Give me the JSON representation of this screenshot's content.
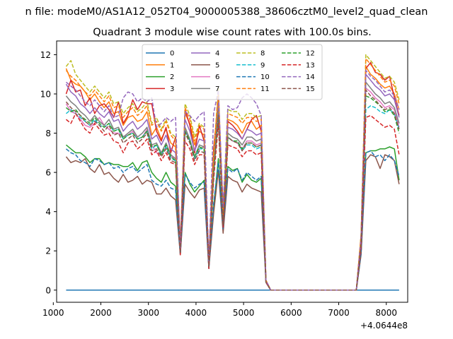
{
  "figure": {
    "suptitle": "n file: modeM0/AS1A12_052T04_9000005388_38606cztM0_level2_quad_clean",
    "title": "Quadrant 3 module wise count rates with 100.0s bins."
  },
  "chart_data": {
    "type": "line",
    "title": "Quadrant 3 module wise count rates with 100.0s bins.",
    "xlabel": "",
    "ylabel": "",
    "x_offset_label": "+4.0644e8",
    "xlim": [
      1070,
      8450
    ],
    "ylim": [
      -0.62,
      12.7
    ],
    "xticks": [
      1000,
      2000,
      3000,
      4000,
      5000,
      6000,
      7000,
      8000
    ],
    "yticks": [
      0,
      2,
      4,
      6,
      8,
      10,
      12
    ],
    "grid": false,
    "legend_placement": "upper center",
    "legend_ncol": 4,
    "x": [
      1270,
      1370,
      1470,
      1570,
      1670,
      1770,
      1870,
      1970,
      2070,
      2170,
      2270,
      2370,
      2470,
      2570,
      2670,
      2770,
      2870,
      2970,
      3070,
      3170,
      3270,
      3370,
      3470,
      3570,
      3670,
      3770,
      3870,
      3970,
      4070,
      4170,
      4270,
      4370,
      4470,
      4570,
      4670,
      4770,
      4870,
      4970,
      5070,
      5170,
      5270,
      5370,
      5470,
      5570,
      5670,
      5770,
      5870,
      5970,
      6070,
      6170,
      6270,
      6370,
      6470,
      6570,
      6670,
      6770,
      6870,
      6970,
      7070,
      7170,
      7270,
      7370,
      7470,
      7570,
      7670,
      7770,
      7870,
      7970,
      8070,
      8170,
      8270
    ],
    "series": [
      {
        "name": "0",
        "color": "#1f77b4",
        "style": "solid",
        "values": [
          0,
          0,
          0,
          0,
          0,
          0,
          0,
          0,
          0,
          0,
          0,
          0,
          0,
          0,
          0,
          0,
          0,
          0,
          0,
          0,
          0,
          0,
          0,
          0,
          0,
          0,
          0,
          0,
          0,
          0,
          0,
          0,
          0,
          0,
          0,
          0,
          0,
          0,
          0,
          0,
          0,
          0,
          0,
          0,
          0,
          0,
          0,
          0,
          0,
          0,
          0,
          0,
          0,
          0,
          0,
          0,
          0,
          0,
          0,
          0,
          0,
          0,
          0,
          0,
          0,
          0,
          0,
          0,
          0,
          0,
          0
        ]
      },
      {
        "name": "1",
        "color": "#ff7f0e",
        "style": "solid",
        "values": [
          11.3,
          10.7,
          10.5,
          10.4,
          10.1,
          9.7,
          10.0,
          9.6,
          9.3,
          9.6,
          9.0,
          9.1,
          8.4,
          8.8,
          8.9,
          8.6,
          8.7,
          9.1,
          7.9,
          8.3,
          7.7,
          8.2,
          7.5,
          7.3,
          2.0,
          9.0,
          8.5,
          7.4,
          8.1,
          7.9,
          1.3,
          6.5,
          10.0,
          3.7,
          8.7,
          8.6,
          8.4,
          8.0,
          8.5,
          8.6,
          8.2,
          8.4,
          0.5,
          0,
          0,
          0,
          0,
          0,
          0,
          0,
          0,
          0,
          0,
          0,
          0,
          0,
          0,
          0,
          0,
          0,
          0,
          0,
          2.6,
          11.4,
          11.0,
          10.8,
          10.5,
          10.3,
          10.4,
          10.0,
          9.2
        ]
      },
      {
        "name": "2",
        "color": "#2ca02c",
        "style": "solid",
        "values": [
          7.4,
          7.2,
          7.0,
          7.0,
          6.8,
          6.5,
          6.7,
          6.7,
          6.4,
          6.5,
          6.4,
          6.4,
          6.3,
          6.3,
          6.5,
          6.1,
          6.5,
          6.6,
          6.0,
          5.7,
          5.5,
          6.0,
          5.5,
          5.3,
          1.9,
          6.0,
          5.4,
          5.0,
          5.3,
          5.6,
          1.2,
          4.2,
          6.7,
          3.2,
          6.3,
          6.1,
          6.2,
          5.5,
          5.9,
          5.6,
          5.5,
          5.7,
          0.4,
          0,
          0,
          0,
          0,
          0,
          0,
          0,
          0,
          0,
          0,
          0,
          0,
          0,
          0,
          0,
          0,
          0,
          0,
          0,
          1.9,
          7.0,
          7.1,
          7.1,
          7.2,
          7.2,
          7.3,
          7.2,
          5.6
        ]
      },
      {
        "name": "3",
        "color": "#d62728",
        "style": "solid",
        "values": [
          10.0,
          10.7,
          10.1,
          10.2,
          9.4,
          9.8,
          9.0,
          9.4,
          9.5,
          9.2,
          8.8,
          9.6,
          8.5,
          8.9,
          9.7,
          9.2,
          9.6,
          9.5,
          9.5,
          8.1,
          7.6,
          8.3,
          7.0,
          7.8,
          2.3,
          9.2,
          8.4,
          7.0,
          8.4,
          7.6,
          1.5,
          7.2,
          9.7,
          4.2,
          8.6,
          8.4,
          8.1,
          7.7,
          8.2,
          8.7,
          8.9,
          8.1,
          0.5,
          0,
          0,
          0,
          0,
          0,
          0,
          0,
          0,
          0,
          0,
          0,
          0,
          0,
          0,
          0,
          0,
          0,
          0,
          0,
          2.8,
          11.3,
          11.6,
          11.1,
          11.0,
          10.7,
          10.9,
          9.8,
          8.9
        ]
      },
      {
        "name": "4",
        "color": "#9467bd",
        "style": "solid",
        "values": [
          10.5,
          10.1,
          9.9,
          9.5,
          9.3,
          9.0,
          9.3,
          9.0,
          8.8,
          9.1,
          8.6,
          8.7,
          8.1,
          8.4,
          8.6,
          8.2,
          8.4,
          8.7,
          7.7,
          7.9,
          7.4,
          7.9,
          7.2,
          7.0,
          1.9,
          8.7,
          8.1,
          7.1,
          7.7,
          7.6,
          1.2,
          6.3,
          9.6,
          3.5,
          8.3,
          8.2,
          8.0,
          7.7,
          8.2,
          8.1,
          7.9,
          8.0,
          0.5,
          0,
          0,
          0,
          0,
          0,
          0,
          0,
          0,
          0,
          0,
          0,
          0,
          0,
          0,
          0,
          0,
          0,
          0,
          0,
          2.5,
          11.0,
          10.7,
          10.4,
          10.2,
          9.9,
          10.0,
          9.7,
          8.8
        ]
      },
      {
        "name": "5",
        "color": "#8c564b",
        "style": "solid",
        "values": [
          6.8,
          6.5,
          6.6,
          6.5,
          6.7,
          6.2,
          6.0,
          6.4,
          5.9,
          6.0,
          5.7,
          5.5,
          5.9,
          5.5,
          5.6,
          5.8,
          5.4,
          5.6,
          5.5,
          4.9,
          4.9,
          5.2,
          4.8,
          4.6,
          1.8,
          5.4,
          5.0,
          4.7,
          5.1,
          5.2,
          1.1,
          3.9,
          6.1,
          2.9,
          5.8,
          5.6,
          5.5,
          5.0,
          5.4,
          5.2,
          5.1,
          5.0,
          0.4,
          0,
          0,
          0,
          0,
          0,
          0,
          0,
          0,
          0,
          0,
          0,
          0,
          0,
          0,
          0,
          0,
          0,
          0,
          0,
          1.8,
          6.6,
          6.9,
          6.8,
          6.2,
          6.9,
          6.8,
          6.6,
          5.4
        ]
      },
      {
        "name": "6",
        "color": "#e377c2",
        "style": "solid",
        "values": [
          9.5,
          9.1,
          9.0,
          8.7,
          8.4,
          8.3,
          8.5,
          8.8,
          8.4,
          8.2,
          8.0,
          8.0,
          7.8,
          7.9,
          8.1,
          7.7,
          7.8,
          8.2,
          7.4,
          7.0,
          6.9,
          7.3,
          6.8,
          6.7,
          1.9,
          8.2,
          7.6,
          6.8,
          7.2,
          7.3,
          1.2,
          6.0,
          8.9,
          3.4,
          7.8,
          7.6,
          7.5,
          7.2,
          7.6,
          7.6,
          7.4,
          7.5,
          0.5,
          0,
          0,
          0,
          0,
          0,
          0,
          0,
          0,
          0,
          0,
          0,
          0,
          0,
          0,
          0,
          0,
          0,
          0,
          0,
          2.4,
          10.3,
          10.1,
          9.8,
          9.6,
          9.3,
          9.4,
          9.2,
          8.3
        ]
      },
      {
        "name": "7",
        "color": "#7f7f7f",
        "style": "solid",
        "values": [
          9.9,
          9.6,
          9.4,
          9.1,
          8.9,
          8.6,
          8.9,
          8.6,
          8.4,
          8.7,
          8.2,
          8.3,
          7.8,
          8.0,
          8.2,
          7.8,
          8.0,
          8.3,
          7.4,
          7.5,
          7.0,
          7.5,
          6.9,
          6.7,
          1.9,
          8.3,
          7.7,
          6.8,
          7.4,
          7.3,
          1.2,
          6.1,
          9.2,
          3.4,
          8.0,
          7.8,
          7.7,
          7.4,
          7.8,
          7.8,
          7.6,
          7.7,
          0.5,
          0,
          0,
          0,
          0,
          0,
          0,
          0,
          0,
          0,
          0,
          0,
          0,
          0,
          0,
          0,
          0,
          0,
          0,
          0,
          2.4,
          10.6,
          10.3,
          10.0,
          9.8,
          9.5,
          9.6,
          9.3,
          8.5
        ]
      },
      {
        "name": "8",
        "color": "#bcbd22",
        "style": "dashed",
        "values": [
          11.4,
          11.7,
          11.0,
          10.7,
          10.4,
          10.1,
          10.4,
          10.1,
          9.8,
          10.1,
          9.5,
          9.6,
          9.0,
          9.3,
          9.5,
          9.1,
          9.3,
          9.6,
          8.5,
          8.8,
          8.2,
          8.7,
          8.0,
          7.8,
          2.1,
          9.5,
          8.9,
          7.8,
          8.5,
          8.3,
          1.3,
          6.9,
          10.3,
          3.8,
          9.2,
          9.1,
          9.1,
          8.7,
          9.0,
          9.0,
          8.8,
          8.9,
          0.5,
          0,
          0,
          0,
          0,
          0,
          0,
          0,
          0,
          0,
          0,
          0,
          0,
          0,
          0,
          0,
          0,
          0,
          0,
          0,
          2.8,
          12.0,
          11.7,
          11.4,
          11.1,
          10.8,
          10.9,
          10.6,
          9.7
        ]
      },
      {
        "name": "9",
        "color": "#17becf",
        "style": "dashed",
        "values": [
          9.0,
          9.2,
          9.0,
          8.8,
          8.6,
          8.4,
          8.7,
          8.4,
          8.3,
          8.5,
          8.1,
          8.2,
          7.7,
          7.9,
          8.0,
          7.7,
          7.8,
          8.1,
          7.2,
          7.4,
          6.9,
          7.3,
          6.7,
          6.6,
          1.9,
          8.1,
          7.6,
          6.7,
          7.2,
          7.2,
          1.2,
          5.9,
          8.9,
          3.3,
          7.8,
          7.6,
          7.6,
          7.1,
          7.4,
          7.4,
          7.2,
          7.3,
          0.4,
          0,
          0,
          0,
          0,
          0,
          0,
          0,
          0,
          0,
          0,
          0,
          0,
          0,
          0,
          0,
          0,
          0,
          0,
          0,
          2.3,
          9.2,
          9.4,
          9.3,
          9.1,
          9.0,
          9.2,
          9.0,
          8.2
        ]
      },
      {
        "name": "10",
        "color": "#1f77b4",
        "style": "dashed",
        "values": [
          7.2,
          7.0,
          6.9,
          6.6,
          6.5,
          6.3,
          6.7,
          6.6,
          6.4,
          6.5,
          6.2,
          6.3,
          6.0,
          6.2,
          6.3,
          6.0,
          6.2,
          6.4,
          5.6,
          5.4,
          5.3,
          5.6,
          5.2,
          5.1,
          1.8,
          5.9,
          5.5,
          5.2,
          5.4,
          5.5,
          1.1,
          4.4,
          6.5,
          3.1,
          6.2,
          6.0,
          6.2,
          5.6,
          6.0,
          5.8,
          5.6,
          5.8,
          0.4,
          0,
          0,
          0,
          0,
          0,
          0,
          0,
          0,
          0,
          0,
          0,
          0,
          0,
          0,
          0,
          0,
          0,
          0,
          0,
          1.9,
          7.0,
          7.1,
          6.8,
          6.9,
          6.6,
          6.9,
          6.6,
          5.8
        ]
      },
      {
        "name": "11",
        "color": "#ff7f0e",
        "style": "dashed",
        "values": [
          11.2,
          10.9,
          10.7,
          10.4,
          10.1,
          9.9,
          10.2,
          9.9,
          9.6,
          9.9,
          9.3,
          9.4,
          8.8,
          9.1,
          9.3,
          8.9,
          9.1,
          9.4,
          8.4,
          8.6,
          8.1,
          8.6,
          7.9,
          7.6,
          2.1,
          9.3,
          8.7,
          7.6,
          8.4,
          8.2,
          1.3,
          6.8,
          10.1,
          3.7,
          9.0,
          8.9,
          8.8,
          8.5,
          8.8,
          8.8,
          8.6,
          8.7,
          0.5,
          0,
          0,
          0,
          0,
          0,
          0,
          0,
          0,
          0,
          0,
          0,
          0,
          0,
          0,
          0,
          0,
          0,
          0,
          0,
          2.7,
          11.8,
          11.5,
          11.2,
          10.9,
          10.6,
          10.7,
          10.4,
          9.5
        ]
      },
      {
        "name": "12",
        "color": "#2ca02c",
        "style": "dashed",
        "values": [
          9.3,
          9.1,
          9.2,
          8.9,
          8.7,
          8.5,
          8.8,
          8.5,
          8.3,
          8.5,
          8.1,
          8.2,
          7.7,
          7.9,
          8.0,
          7.7,
          7.8,
          8.1,
          7.3,
          7.4,
          6.9,
          7.4,
          6.8,
          6.6,
          1.9,
          8.1,
          7.6,
          6.8,
          7.3,
          7.2,
          1.2,
          6.0,
          8.9,
          3.3,
          7.8,
          7.6,
          7.6,
          7.2,
          7.5,
          7.5,
          7.3,
          7.4,
          0.4,
          0,
          0,
          0,
          0,
          0,
          0,
          0,
          0,
          0,
          0,
          0,
          0,
          0,
          0,
          0,
          0,
          0,
          0,
          0,
          2.3,
          9.9,
          9.8,
          9.6,
          9.4,
          9.1,
          9.2,
          8.9,
          8.0
        ]
      },
      {
        "name": "13",
        "color": "#d62728",
        "style": "dashed",
        "values": [
          8.7,
          8.5,
          9.0,
          8.6,
          8.2,
          8.0,
          8.5,
          8.2,
          7.9,
          8.0,
          7.6,
          7.5,
          7.0,
          7.5,
          7.6,
          7.2,
          7.4,
          7.7,
          6.9,
          7.1,
          6.6,
          7.0,
          6.5,
          6.4,
          1.8,
          7.6,
          7.2,
          6.4,
          6.9,
          6.9,
          1.1,
          5.6,
          8.5,
          3.2,
          7.4,
          7.3,
          7.2,
          6.8,
          7.1,
          7.1,
          6.9,
          7.0,
          0.4,
          0,
          0,
          0,
          0,
          0,
          0,
          0,
          0,
          0,
          0,
          0,
          0,
          0,
          0,
          0,
          0,
          0,
          0,
          0,
          2.2,
          8.8,
          8.9,
          8.7,
          8.5,
          8.3,
          8.4,
          8.2,
          6.9
        ]
      },
      {
        "name": "14",
        "color": "#9467bd",
        "style": "dashed",
        "values": [
          10.6,
          10.4,
          10.2,
          9.9,
          9.6,
          9.4,
          9.7,
          9.4,
          9.1,
          9.4,
          8.8,
          8.9,
          9.8,
          10.1,
          10.0,
          9.6,
          9.8,
          9.6,
          9.8,
          8.3,
          8.5,
          8.8,
          8.6,
          8.8,
          2.0,
          9.1,
          8.9,
          8.6,
          8.9,
          9.1,
          1.3,
          9.0,
          10.2,
          4.2,
          9.4,
          9.2,
          9.3,
          9.8,
          10.0,
          9.8,
          9.5,
          8.9,
          0.5,
          0,
          0,
          0,
          0,
          0,
          0,
          0,
          0,
          0,
          0,
          0,
          0,
          0,
          0,
          0,
          0,
          0,
          0,
          0,
          2.6,
          11.2,
          10.9,
          10.7,
          10.4,
          10.1,
          10.2,
          9.9,
          9.2
        ]
      },
      {
        "name": "15",
        "color": "#8c564b",
        "style": "dashed",
        "values": [
          9.6,
          9.3,
          9.1,
          8.9,
          8.6,
          8.4,
          8.6,
          8.4,
          8.1,
          8.4,
          7.9,
          8.0,
          7.5,
          7.7,
          7.9,
          7.5,
          7.7,
          8.0,
          7.1,
          7.2,
          6.8,
          7.2,
          6.6,
          6.5,
          1.9,
          8.0,
          7.5,
          6.6,
          7.1,
          7.0,
          1.2,
          5.9,
          8.9,
          3.3,
          7.8,
          7.6,
          7.5,
          7.1,
          7.5,
          7.5,
          7.3,
          7.4,
          0.4,
          0,
          0,
          0,
          0,
          0,
          0,
          0,
          0,
          0,
          0,
          0,
          0,
          0,
          0,
          0,
          0,
          0,
          0,
          0,
          2.3,
          10.2,
          9.9,
          9.7,
          9.4,
          9.2,
          9.3,
          9.0,
          8.2
        ]
      }
    ]
  }
}
